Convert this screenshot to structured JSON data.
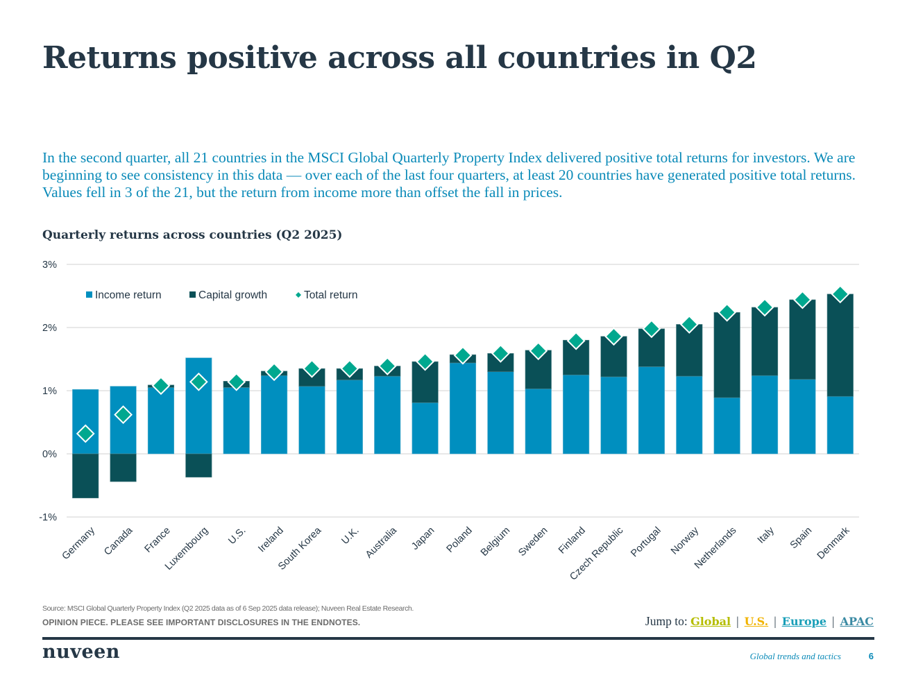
{
  "page": {
    "title": "Returns positive across all countries in Q2",
    "intro": "In the second quarter, all 21 countries in the MSCI Global Quarterly Property Index delivered positive total returns for investors. We are beginning to see consistency in this data — over each of the last four quarters, at least 20 countries have generated positive total returns. Values fell in 3 of the 21, but the return from income more than offset the fall in prices.",
    "source": "Source: MSCI Global Quarterly Property Index (Q2 2025 data as of 6 Sep 2025 data release); Nuveen Real Estate Research.",
    "disclaimer": "OPINION PIECE. PLEASE SEE IMPORTANT DISCLOSURES IN THE ENDNOTES.",
    "jump_label": "Jump to:",
    "jump_links": [
      {
        "label": "Global",
        "color": "#b5bd00"
      },
      {
        "label": "U.S.",
        "color": "#f1b300"
      },
      {
        "label": "Europe",
        "color": "#1a9fb8"
      },
      {
        "label": "APAC",
        "color": "#3a8aa3"
      }
    ],
    "jump_separator": "|",
    "logo": "nuveen",
    "footer_title": "Global trends and tactics",
    "page_number": "6"
  },
  "colors": {
    "income": "#008fbf",
    "capital": "#0a5057",
    "total": "#00a88f",
    "grid": "#d9d9d9",
    "text": "#253746"
  },
  "chart_data": {
    "type": "bar",
    "stacked": true,
    "title": "Quarterly returns across countries (Q2 2025)",
    "xlabel": "",
    "ylabel": "",
    "ylim": [
      -1,
      3
    ],
    "yticks": [
      -1,
      0,
      1,
      2,
      3
    ],
    "ytick_labels": [
      "-1%",
      "0%",
      "1%",
      "2%",
      "3%"
    ],
    "grid": true,
    "legend_position": "top-left",
    "categories": [
      "Germany",
      "Canada",
      "France",
      "Luxembourg",
      "U.S.",
      "Ireland",
      "South Korea",
      "U.K.",
      "Australia",
      "Japan",
      "Poland",
      "Belgium",
      "Sweden",
      "Finland",
      "Czech Republic",
      "Portugal",
      "Norway",
      "Netherlands",
      "Italy",
      "Spain",
      "Denmark"
    ],
    "series": [
      {
        "name": "Income return",
        "type": "bar",
        "values": [
          1.02,
          1.07,
          1.05,
          1.52,
          1.05,
          1.24,
          1.07,
          1.17,
          1.23,
          0.81,
          1.44,
          1.3,
          1.03,
          1.25,
          1.22,
          1.38,
          1.23,
          0.89,
          1.24,
          1.18,
          0.91
        ]
      },
      {
        "name": "Capital growth",
        "type": "bar",
        "values": [
          -0.7,
          -0.44,
          0.04,
          -0.37,
          0.1,
          0.07,
          0.28,
          0.18,
          0.16,
          0.65,
          0.13,
          0.29,
          0.61,
          0.55,
          0.64,
          0.6,
          0.82,
          1.35,
          1.08,
          1.26,
          1.62
        ]
      },
      {
        "name": "Total return",
        "type": "scatter",
        "marker": "diamond",
        "values": [
          0.32,
          0.62,
          1.08,
          1.14,
          1.14,
          1.3,
          1.35,
          1.35,
          1.39,
          1.46,
          1.56,
          1.59,
          1.63,
          1.79,
          1.86,
          1.98,
          2.05,
          2.24,
          2.32,
          2.44,
          2.53
        ]
      }
    ]
  }
}
